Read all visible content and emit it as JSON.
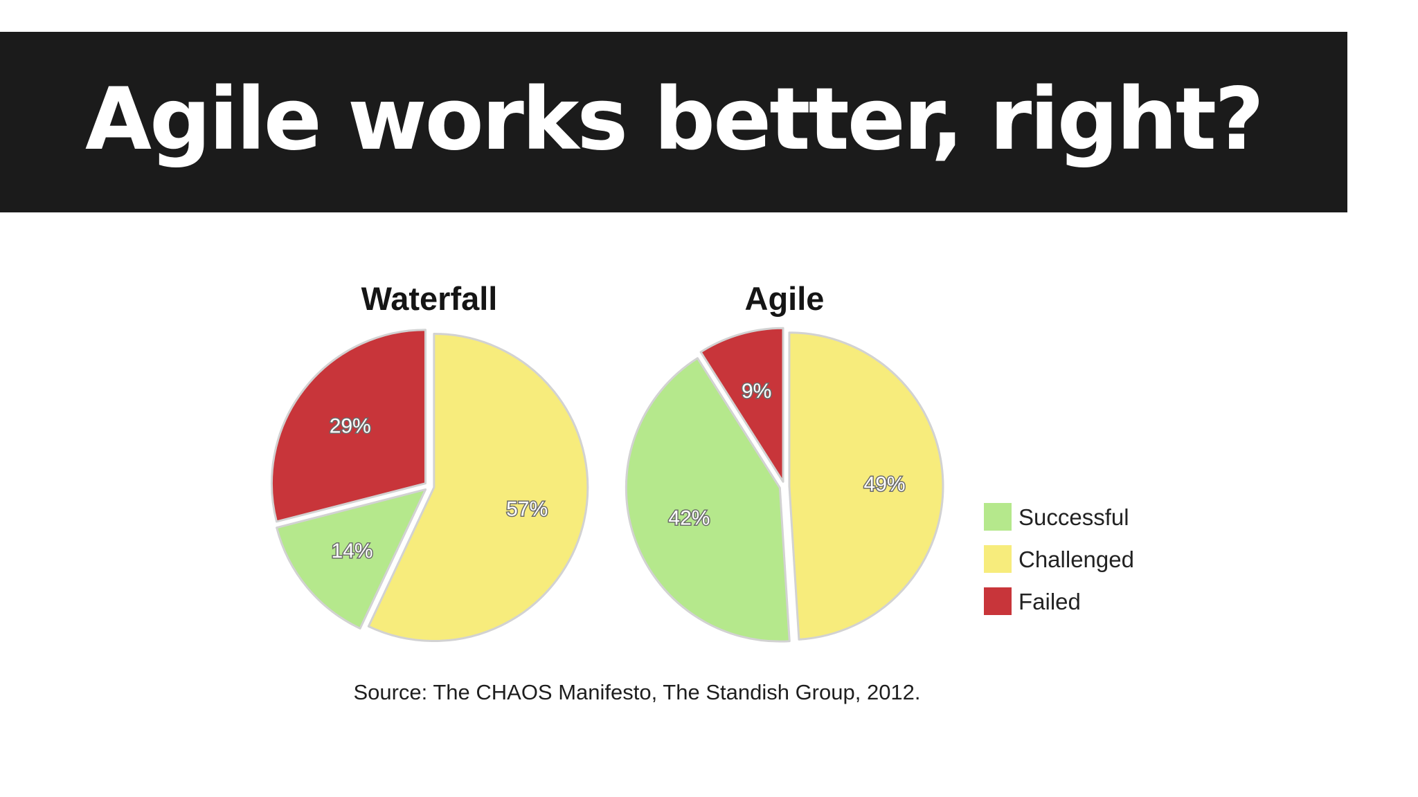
{
  "slide": {
    "title": "Agile works better, right?"
  },
  "chart_data": {
    "type": "pie",
    "categories": [
      "Successful",
      "Challenged",
      "Failed"
    ],
    "colors": {
      "Successful": "#b5e88c",
      "Challenged": "#f7ec7c",
      "Failed": "#c8353a"
    },
    "charts": [
      {
        "title": "Waterfall",
        "values": {
          "Successful": 14,
          "Challenged": 57,
          "Failed": 29
        },
        "labels": {
          "Successful": "14%",
          "Challenged": "57%",
          "Failed": "29%"
        }
      },
      {
        "title": "Agile",
        "values": {
          "Successful": 42,
          "Challenged": 49,
          "Failed": 9
        },
        "labels": {
          "Successful": "42%",
          "Challenged": "49%",
          "Failed": "9%"
        }
      }
    ],
    "legend": [
      "Successful",
      "Challenged",
      "Failed"
    ],
    "legend_position": "right",
    "source": "Source: The CHAOS Manifesto, The Standish Group, 2012."
  }
}
